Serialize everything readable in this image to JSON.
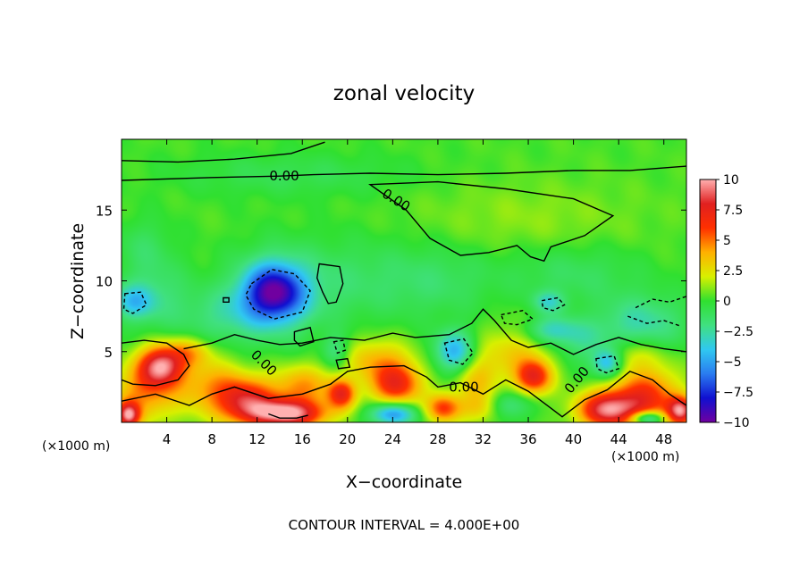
{
  "chart_data": {
    "type": "heatmap",
    "title": "zonal velocity",
    "xlabel": "X−coordinate",
    "ylabel": "Z−coordinate",
    "x_unit_left": "(×1000 m)",
    "x_unit_right": "(×1000 m)",
    "footer": "CONTOUR INTERVAL = 4.000E+00",
    "xlim": [
      0,
      50
    ],
    "ylim": [
      0,
      20
    ],
    "x_ticks": [
      4,
      8,
      12,
      16,
      20,
      24,
      28,
      32,
      36,
      40,
      44,
      48
    ],
    "x_tick_labels": [
      "4",
      "8",
      "12",
      "16",
      "20",
      "24",
      "28",
      "32",
      "36",
      "40",
      "44",
      "48"
    ],
    "y_ticks": [
      5,
      10,
      15
    ],
    "y_tick_labels": [
      "5",
      "10",
      "15"
    ],
    "colorbar": {
      "range": [
        -10,
        10
      ],
      "tick_values": [
        10,
        7.5,
        5,
        2.5,
        0,
        -2.5,
        -5,
        -7.5,
        -10
      ],
      "tick_labels": [
        "10",
        "7.5",
        "5",
        "2.5",
        "0",
        "−2.5",
        "−5",
        "−7.5",
        "−10"
      ],
      "stops": [
        "#7000a0",
        "#1010d0",
        "#2a7cf0",
        "#30c8f0",
        "#40e080",
        "#30e030",
        "#d8f000",
        "#ffb000",
        "#ff3000",
        "#e02020",
        "#ffb0b0"
      ]
    },
    "background_value": 0.3,
    "features": [
      {
        "x": 3.5,
        "z": 4.0,
        "rx": 2.0,
        "rz": 1.4,
        "value": 8.5
      },
      {
        "x": 0.6,
        "z": 0.5,
        "rx": 1.0,
        "rz": 0.9,
        "value": 8
      },
      {
        "x": 2.0,
        "z": 2.0,
        "rx": 3.0,
        "rz": 2.0,
        "value": 4
      },
      {
        "x": 8.0,
        "z": 2.5,
        "rx": 3.0,
        "rz": 2.0,
        "value": 3.5
      },
      {
        "x": 6.0,
        "z": 5.0,
        "rx": 2.0,
        "rz": 1.0,
        "value": 3
      },
      {
        "x": 14.5,
        "z": 0.6,
        "rx": 3.5,
        "rz": 1.0,
        "value": 9.5
      },
      {
        "x": 11.0,
        "z": 1.6,
        "rx": 2.5,
        "rz": 1.5,
        "value": 6
      },
      {
        "x": 16.0,
        "z": 2.5,
        "rx": 3.0,
        "rz": 1.5,
        "value": 4
      },
      {
        "x": 13.5,
        "z": 9.2,
        "rx": 2.6,
        "rz": 1.9,
        "value": -7
      },
      {
        "x": 13.5,
        "z": 9.0,
        "rx": 4.0,
        "rz": 3.0,
        "value": -3
      },
      {
        "x": 9.0,
        "z": 7.5,
        "rx": 4.0,
        "rz": 2.0,
        "value": -2
      },
      {
        "x": 19.5,
        "z": 2.0,
        "rx": 1.2,
        "rz": 1.0,
        "value": 6
      },
      {
        "x": 19.0,
        "z": 5.0,
        "rx": 1.2,
        "rz": 1.2,
        "value": -2.5
      },
      {
        "x": 24.3,
        "z": 2.7,
        "rx": 2.3,
        "rz": 1.5,
        "value": 6.5
      },
      {
        "x": 24.0,
        "z": 0.6,
        "rx": 2.0,
        "rz": 0.8,
        "value": -6
      },
      {
        "x": 22.5,
        "z": 4.5,
        "rx": 3.0,
        "rz": 1.5,
        "value": 3
      },
      {
        "x": 29.5,
        "z": 5.0,
        "rx": 1.8,
        "rz": 1.5,
        "value": -5
      },
      {
        "x": 28.5,
        "z": 1.0,
        "rx": 1.5,
        "rz": 1.0,
        "value": 5.5
      },
      {
        "x": 31.5,
        "z": 3.0,
        "rx": 2.0,
        "rz": 2.0,
        "value": 3
      },
      {
        "x": 32.0,
        "z": 1.0,
        "rx": 2.0,
        "rz": 1.0,
        "value": 2.5
      },
      {
        "x": 36.5,
        "z": 3.2,
        "rx": 1.6,
        "rz": 1.2,
        "value": 6.5
      },
      {
        "x": 35.0,
        "z": 5.0,
        "rx": 3.0,
        "rz": 2.0,
        "value": 2.5
      },
      {
        "x": 34.0,
        "z": 1.2,
        "rx": 2.0,
        "rz": 1.0,
        "value": -3
      },
      {
        "x": 38.0,
        "z": 6.5,
        "rx": 2.5,
        "rz": 1.0,
        "value": -3.5
      },
      {
        "x": 37.8,
        "z": 8.5,
        "rx": 1.5,
        "rz": 0.8,
        "value": -3
      },
      {
        "x": 41.0,
        "z": 5.5,
        "rx": 2.5,
        "rz": 1.5,
        "value": -2
      },
      {
        "x": 43.0,
        "z": 4.2,
        "rx": 1.3,
        "rz": 1.0,
        "value": -5
      },
      {
        "x": 43.0,
        "z": 0.9,
        "rx": 2.6,
        "rz": 1.3,
        "value": 8.5
      },
      {
        "x": 46.5,
        "z": 1.8,
        "rx": 2.8,
        "rz": 2.0,
        "value": 6
      },
      {
        "x": 46.5,
        "z": 0.3,
        "rx": 1.5,
        "rz": 0.5,
        "value": -6
      },
      {
        "x": 49.5,
        "z": 0.8,
        "rx": 1.2,
        "rz": 1.0,
        "value": 8
      },
      {
        "x": 46.0,
        "z": 7.0,
        "rx": 4.0,
        "rz": 2.0,
        "value": -3
      },
      {
        "x": 45.0,
        "z": 4.8,
        "rx": 3.0,
        "rz": 1.2,
        "value": 2
      },
      {
        "x": 1.0,
        "z": 8.5,
        "rx": 1.8,
        "rz": 1.2,
        "value": -3.5
      },
      {
        "x": 3.0,
        "z": 9.0,
        "rx": 3.0,
        "rz": 2.5,
        "value": -2
      },
      {
        "x": 20.0,
        "z": 10.0,
        "rx": 6.0,
        "rz": 3.0,
        "value": -1.5
      },
      {
        "x": 28.0,
        "z": 10.0,
        "rx": 5.0,
        "rz": 2.5,
        "value": -1.5
      },
      {
        "x": 40.0,
        "z": 10.5,
        "rx": 6.0,
        "rz": 2.0,
        "value": -1.5
      },
      {
        "x": 2.0,
        "z": 12.5,
        "rx": 2.5,
        "rz": 2.0,
        "value": -1.3
      },
      {
        "x": 15.0,
        "z": 17.5,
        "rx": 10.0,
        "rz": 1.5,
        "value": -1.2
      },
      {
        "x": 36.0,
        "z": 14.5,
        "rx": 10.0,
        "rz": 2.5,
        "value": 0.8
      }
    ],
    "contours": [
      {
        "style": "solid",
        "points": [
          [
            0,
            18.5
          ],
          [
            5,
            18.4
          ],
          [
            10,
            18.6
          ],
          [
            15,
            19.0
          ],
          [
            18,
            19.8
          ]
        ]
      },
      {
        "style": "solid",
        "points": [
          [
            0,
            17.1
          ],
          [
            8,
            17.3
          ],
          [
            14,
            17.4
          ],
          [
            17,
            17.5
          ],
          [
            22,
            17.6
          ],
          [
            28,
            17.5
          ],
          [
            34,
            17.6
          ],
          [
            40,
            17.8
          ],
          [
            45,
            17.8
          ],
          [
            50,
            18.1
          ]
        ]
      },
      {
        "style": "solid",
        "closed": true,
        "points": [
          [
            22,
            16.8
          ],
          [
            28,
            17.0
          ],
          [
            34,
            16.5
          ],
          [
            40,
            15.8
          ],
          [
            43.5,
            14.6
          ],
          [
            41,
            13.2
          ],
          [
            38,
            12.4
          ],
          [
            37.4,
            11.4
          ],
          [
            36.2,
            11.7
          ],
          [
            35,
            12.5
          ],
          [
            32.5,
            12.0
          ],
          [
            30,
            11.8
          ],
          [
            27.3,
            13.0
          ],
          [
            25.2,
            15.0
          ]
        ]
      },
      {
        "style": "solid",
        "closed": true,
        "points": [
          [
            17.5,
            11.2
          ],
          [
            19.3,
            11.0
          ],
          [
            19.6,
            9.8
          ],
          [
            19.0,
            8.5
          ],
          [
            18.3,
            8.4
          ],
          [
            17.8,
            9.2
          ],
          [
            17.3,
            10.2
          ]
        ]
      },
      {
        "style": "dashed",
        "closed": true,
        "points": [
          [
            11.5,
            9.8
          ],
          [
            13.3,
            10.8
          ],
          [
            15.3,
            10.5
          ],
          [
            16.7,
            9.3
          ],
          [
            16.0,
            7.8
          ],
          [
            13.5,
            7.3
          ],
          [
            11.7,
            8.0
          ],
          [
            11.0,
            9.0
          ]
        ]
      },
      {
        "style": "solid",
        "points": [
          [
            0,
            5.6
          ],
          [
            2,
            5.8
          ],
          [
            4,
            5.6
          ],
          [
            5.5,
            4.8
          ],
          [
            6.0,
            4.0
          ],
          [
            5.0,
            3.0
          ],
          [
            3.0,
            2.6
          ],
          [
            1.0,
            2.7
          ],
          [
            0,
            3.0
          ]
        ]
      },
      {
        "style": "solid",
        "points": [
          [
            5.5,
            5.2
          ],
          [
            8,
            5.6
          ],
          [
            10,
            6.2
          ],
          [
            12,
            5.8
          ],
          [
            14,
            5.5
          ],
          [
            16,
            5.6
          ],
          [
            18.5,
            6.0
          ],
          [
            21.5,
            5.8
          ],
          [
            24,
            6.3
          ],
          [
            26,
            6.0
          ],
          [
            29,
            6.2
          ],
          [
            31,
            7.0
          ],
          [
            32,
            8.0
          ],
          [
            33,
            7.2
          ],
          [
            34.5,
            5.8
          ],
          [
            36,
            5.3
          ],
          [
            38,
            5.6
          ],
          [
            40,
            4.8
          ],
          [
            42,
            5.5
          ],
          [
            44,
            6.0
          ],
          [
            46,
            5.5
          ],
          [
            48,
            5.2
          ],
          [
            50,
            5.0
          ]
        ]
      },
      {
        "style": "solid",
        "points": [
          [
            0,
            1.5
          ],
          [
            3,
            2.0
          ],
          [
            6,
            1.2
          ],
          [
            8,
            2.0
          ],
          [
            10,
            2.5
          ],
          [
            13,
            1.7
          ],
          [
            16,
            2.0
          ],
          [
            18.5,
            2.7
          ],
          [
            20,
            3.6
          ],
          [
            22,
            3.9
          ],
          [
            25,
            4.0
          ],
          [
            27,
            3.2
          ],
          [
            28,
            2.5
          ],
          [
            30,
            2.8
          ],
          [
            32,
            2.0
          ],
          [
            34,
            3.0
          ],
          [
            36,
            2.2
          ],
          [
            38,
            1.0
          ],
          [
            39,
            0.4
          ],
          [
            41,
            1.6
          ],
          [
            43,
            2.3
          ],
          [
            45,
            3.6
          ],
          [
            47,
            3.0
          ],
          [
            48.5,
            2.0
          ],
          [
            50,
            1.2
          ]
        ]
      },
      {
        "style": "solid",
        "points": [
          [
            13,
            0.6
          ],
          [
            14,
            0.3
          ],
          [
            15.5,
            0.3
          ],
          [
            16.5,
            0.5
          ]
        ]
      },
      {
        "style": "dashed",
        "closed": true,
        "points": [
          [
            0.3,
            9.1
          ],
          [
            1.7,
            9.2
          ],
          [
            2.2,
            8.3
          ],
          [
            1.0,
            7.7
          ],
          [
            0.2,
            8.0
          ]
        ]
      },
      {
        "style": "dashed",
        "points": [
          [
            45.5,
            8.1
          ],
          [
            47,
            8.7
          ],
          [
            48.5,
            8.5
          ],
          [
            50,
            8.9
          ]
        ]
      },
      {
        "style": "dashed",
        "points": [
          [
            44.8,
            7.5
          ],
          [
            46.5,
            7.0
          ],
          [
            48,
            7.2
          ],
          [
            49.5,
            6.8
          ]
        ]
      },
      {
        "style": "dashed",
        "closed": true,
        "points": [
          [
            37.2,
            8.6
          ],
          [
            38.6,
            8.8
          ],
          [
            39.2,
            8.3
          ],
          [
            38.2,
            7.9
          ],
          [
            37.3,
            8.1
          ]
        ]
      },
      {
        "style": "dashed",
        "closed": true,
        "points": [
          [
            33.6,
            7.6
          ],
          [
            35.5,
            7.9
          ],
          [
            36.4,
            7.3
          ],
          [
            35.0,
            6.9
          ],
          [
            33.9,
            7.0
          ]
        ]
      },
      {
        "style": "dashed",
        "closed": true,
        "points": [
          [
            28.6,
            5.6
          ],
          [
            30.3,
            5.9
          ],
          [
            31.1,
            4.9
          ],
          [
            30.2,
            4.1
          ],
          [
            29.0,
            4.4
          ]
        ]
      },
      {
        "style": "dashed",
        "closed": true,
        "points": [
          [
            42.0,
            4.5
          ],
          [
            43.6,
            4.7
          ],
          [
            44.0,
            3.8
          ],
          [
            42.9,
            3.5
          ],
          [
            42.1,
            3.8
          ]
        ]
      },
      {
        "style": "dashed",
        "closed": true,
        "points": [
          [
            18.8,
            5.7
          ],
          [
            19.6,
            5.8
          ],
          [
            19.8,
            5.1
          ],
          [
            19.1,
            4.9
          ]
        ]
      },
      {
        "style": "solid",
        "closed": true,
        "points": [
          [
            9.0,
            8.8
          ],
          [
            9.5,
            8.8
          ],
          [
            9.5,
            8.5
          ],
          [
            9.0,
            8.5
          ]
        ]
      },
      {
        "style": "solid",
        "closed": true,
        "points": [
          [
            15.3,
            6.4
          ],
          [
            16.7,
            6.7
          ],
          [
            17.0,
            5.7
          ],
          [
            15.8,
            5.4
          ],
          [
            15.3,
            5.8
          ]
        ]
      },
      {
        "style": "solid",
        "closed": true,
        "points": [
          [
            19.0,
            4.4
          ],
          [
            20.0,
            4.5
          ],
          [
            20.2,
            3.9
          ],
          [
            19.2,
            3.8
          ]
        ]
      }
    ],
    "contour_labels": [
      {
        "text": "0.00",
        "x": 14.4,
        "z": 17.4,
        "rotate": 0
      },
      {
        "text": "0.00",
        "x": 24.3,
        "z": 15.7,
        "rotate": 32
      },
      {
        "text": "0.00",
        "x": 12.6,
        "z": 4.2,
        "rotate": 45
      },
      {
        "text": "0.00",
        "x": 30.3,
        "z": 2.5,
        "rotate": 0
      },
      {
        "text": "0.00",
        "x": 40.3,
        "z": 3.0,
        "rotate": -50
      }
    ]
  }
}
